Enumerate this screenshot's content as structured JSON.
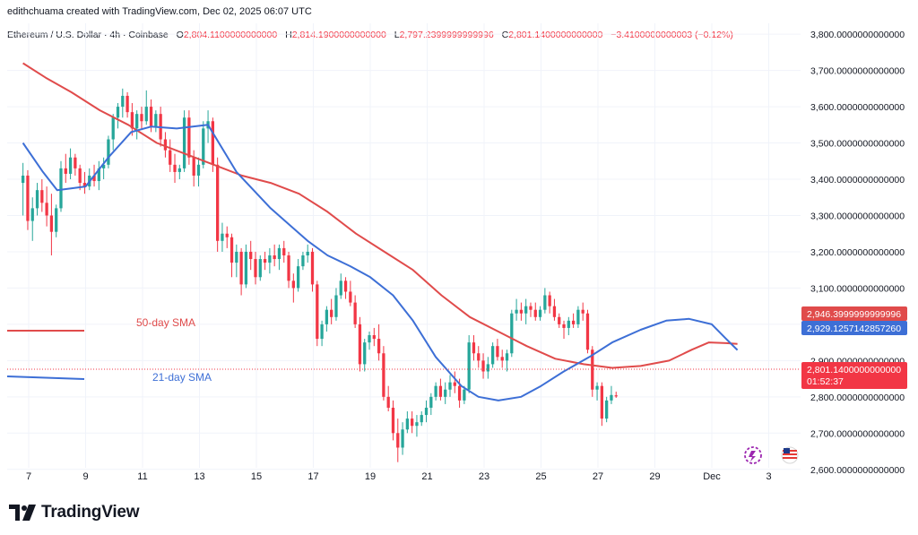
{
  "header": {
    "author_line": "edithchuama created with TradingView.com, Dec 02, 2025 06:07 UTC"
  },
  "legend": {
    "symbol": "Ethereum / U.S. Dollar · 4h · Coinbase",
    "open_label": "O",
    "open": "2,804.1100000000000",
    "high_label": "H",
    "high": "2,814.1900000000000",
    "low_label": "L",
    "low": "2,797.2399999999996",
    "close_label": "C",
    "close": "2,801.1400000000000",
    "change": "−3.4100000000003 (−0.12%)"
  },
  "price_badges": {
    "sma50_value": "2,946.3999999999996",
    "sma21_value": "2,929.1257142857260",
    "last_price": "2,801.1400000000000",
    "countdown": "01:52:37"
  },
  "annotations": {
    "sma50_label": "50-day SMA",
    "sma21_label": "21-day SMA"
  },
  "colors": {
    "up": "#26a69a",
    "down": "#f23645",
    "sma50": "#e04b4b",
    "sma21": "#3d6fd6",
    "grid": "#f0f3fa",
    "axis_text": "#131722"
  },
  "footer": {
    "brand": "TradingView"
  },
  "chart_data": {
    "type": "candlestick",
    "title": "Ethereum / U.S. Dollar · 4h · Coinbase",
    "ylim": [
      2550,
      3830
    ],
    "y_ticks": [
      2600,
      2700,
      2800,
      2900,
      3000,
      3100,
      3200,
      3300,
      3400,
      3500,
      3600,
      3700,
      3800
    ],
    "y_tick_labels": [
      "2,600.0000000000000",
      "2,700.0000000000000",
      "2,800.0000000000000",
      "2,900.0000000000000",
      "3,000.0000000000000",
      "3,100.0000000000000",
      "3,200.0000000000000",
      "3,300.0000000000000",
      "3,400.0000000000000",
      "3,500.0000000000000",
      "3,600.0000000000000",
      "3,700.0000000000000",
      "3,800.0000000000000"
    ],
    "x_tick_labels": [
      "7",
      "9",
      "11",
      "13",
      "15",
      "17",
      "19",
      "21",
      "23",
      "25",
      "27",
      "29",
      "Dec",
      "3"
    ],
    "x_tick_days": [
      7,
      9,
      11,
      13,
      15,
      17,
      19,
      21,
      23,
      25,
      27,
      29,
      31,
      33
    ],
    "candle_start_day": 6.8,
    "candle_interval_days": 0.1667,
    "series": [
      {
        "name": "ETHUSD 4h",
        "ohlc": [
          [
            3390,
            3445,
            3300,
            3410
          ],
          [
            3410,
            3425,
            3260,
            3285
          ],
          [
            3285,
            3350,
            3230,
            3320
          ],
          [
            3320,
            3390,
            3300,
            3370
          ],
          [
            3370,
            3400,
            3310,
            3335
          ],
          [
            3335,
            3380,
            3270,
            3300
          ],
          [
            3300,
            3360,
            3190,
            3255
          ],
          [
            3255,
            3330,
            3240,
            3320
          ],
          [
            3320,
            3450,
            3310,
            3430
          ],
          [
            3430,
            3470,
            3390,
            3415
          ],
          [
            3415,
            3485,
            3400,
            3460
          ],
          [
            3460,
            3470,
            3410,
            3430
          ],
          [
            3430,
            3440,
            3370,
            3390
          ],
          [
            3390,
            3420,
            3360,
            3380
          ],
          [
            3380,
            3430,
            3370,
            3410
          ],
          [
            3410,
            3440,
            3380,
            3395
          ],
          [
            3395,
            3450,
            3370,
            3430
          ],
          [
            3430,
            3460,
            3400,
            3440
          ],
          [
            3440,
            3520,
            3430,
            3510
          ],
          [
            3510,
            3580,
            3480,
            3570
          ],
          [
            3570,
            3610,
            3540,
            3600
          ],
          [
            3600,
            3650,
            3570,
            3630
          ],
          [
            3630,
            3640,
            3570,
            3585
          ],
          [
            3585,
            3610,
            3520,
            3540
          ],
          [
            3540,
            3590,
            3510,
            3580
          ],
          [
            3580,
            3600,
            3540,
            3560
          ],
          [
            3560,
            3645,
            3550,
            3600
          ],
          [
            3600,
            3620,
            3530,
            3545
          ],
          [
            3545,
            3590,
            3530,
            3580
          ],
          [
            3580,
            3600,
            3490,
            3510
          ],
          [
            3510,
            3530,
            3460,
            3480
          ],
          [
            3480,
            3510,
            3420,
            3440
          ],
          [
            3440,
            3470,
            3390,
            3420
          ],
          [
            3420,
            3440,
            3400,
            3430
          ],
          [
            3430,
            3590,
            3420,
            3570
          ],
          [
            3570,
            3590,
            3440,
            3460
          ],
          [
            3460,
            3480,
            3380,
            3410
          ],
          [
            3410,
            3460,
            3380,
            3440
          ],
          [
            3440,
            3560,
            3430,
            3540
          ],
          [
            3540,
            3590,
            3500,
            3560
          ],
          [
            3560,
            3570,
            3420,
            3440
          ],
          [
            3440,
            3460,
            3200,
            3230
          ],
          [
            3230,
            3280,
            3200,
            3250
          ],
          [
            3250,
            3270,
            3210,
            3240
          ],
          [
            3240,
            3250,
            3130,
            3170
          ],
          [
            3170,
            3220,
            3130,
            3200
          ],
          [
            3200,
            3210,
            3080,
            3110
          ],
          [
            3110,
            3220,
            3100,
            3200
          ],
          [
            3200,
            3230,
            3150,
            3180
          ],
          [
            3180,
            3200,
            3110,
            3130
          ],
          [
            3130,
            3190,
            3120,
            3180
          ],
          [
            3180,
            3200,
            3150,
            3170
          ],
          [
            3170,
            3210,
            3140,
            3190
          ],
          [
            3190,
            3220,
            3160,
            3180
          ],
          [
            3180,
            3220,
            3150,
            3210
          ],
          [
            3210,
            3230,
            3170,
            3190
          ],
          [
            3190,
            3200,
            3100,
            3120
          ],
          [
            3120,
            3140,
            3060,
            3100
          ],
          [
            3100,
            3180,
            3090,
            3160
          ],
          [
            3160,
            3200,
            3150,
            3190
          ],
          [
            3190,
            3220,
            3170,
            3200
          ],
          [
            3200,
            3210,
            3090,
            3110
          ],
          [
            3110,
            3120,
            2940,
            2960
          ],
          [
            2960,
            3010,
            2940,
            3000
          ],
          [
            3000,
            3050,
            2980,
            3040
          ],
          [
            3040,
            3070,
            3000,
            3020
          ],
          [
            3020,
            3100,
            3010,
            3080
          ],
          [
            3080,
            3140,
            3070,
            3120
          ],
          [
            3120,
            3130,
            3070,
            3090
          ],
          [
            3090,
            3120,
            3050,
            3060
          ],
          [
            3060,
            3080,
            2990,
            3000
          ],
          [
            3000,
            3020,
            2870,
            2890
          ],
          [
            2890,
            2960,
            2870,
            2950
          ],
          [
            2950,
            2980,
            2930,
            2970
          ],
          [
            2970,
            2990,
            2940,
            2960
          ],
          [
            2960,
            3000,
            2900,
            2920
          ],
          [
            2920,
            2940,
            2790,
            2800
          ],
          [
            2800,
            2830,
            2760,
            2770
          ],
          [
            2770,
            2790,
            2680,
            2700
          ],
          [
            2700,
            2740,
            2620,
            2660
          ],
          [
            2660,
            2730,
            2640,
            2710
          ],
          [
            2710,
            2760,
            2700,
            2740
          ],
          [
            2740,
            2760,
            2700,
            2720
          ],
          [
            2720,
            2750,
            2690,
            2730
          ],
          [
            2730,
            2760,
            2720,
            2750
          ],
          [
            2750,
            2790,
            2730,
            2770
          ],
          [
            2770,
            2810,
            2750,
            2800
          ],
          [
            2800,
            2840,
            2790,
            2830
          ],
          [
            2830,
            2850,
            2790,
            2800
          ],
          [
            2800,
            2840,
            2780,
            2820
          ],
          [
            2820,
            2860,
            2800,
            2840
          ],
          [
            2840,
            2870,
            2810,
            2830
          ],
          [
            2830,
            2850,
            2770,
            2790
          ],
          [
            2790,
            2830,
            2780,
            2820
          ],
          [
            2820,
            2970,
            2810,
            2950
          ],
          [
            2950,
            2970,
            2900,
            2920
          ],
          [
            2920,
            2940,
            2880,
            2900
          ],
          [
            2900,
            2920,
            2850,
            2870
          ],
          [
            2870,
            2910,
            2850,
            2890
          ],
          [
            2890,
            2950,
            2880,
            2940
          ],
          [
            2940,
            2960,
            2900,
            2910
          ],
          [
            2910,
            2930,
            2880,
            2900
          ],
          [
            2900,
            2930,
            2870,
            2920
          ],
          [
            2920,
            3040,
            2910,
            3030
          ],
          [
            3030,
            3070,
            3010,
            3040
          ],
          [
            3040,
            3060,
            3010,
            3030
          ],
          [
            3030,
            3070,
            3000,
            3050
          ],
          [
            3050,
            3060,
            3020,
            3040
          ],
          [
            3040,
            3060,
            3010,
            3020
          ],
          [
            3020,
            3050,
            3010,
            3040
          ],
          [
            3040,
            3100,
            3030,
            3080
          ],
          [
            3080,
            3090,
            3030,
            3050
          ],
          [
            3050,
            3070,
            3010,
            3020
          ],
          [
            3020,
            3030,
            2990,
            3000
          ],
          [
            3000,
            3010,
            2960,
            2990
          ],
          [
            2990,
            3020,
            2970,
            3010
          ],
          [
            3010,
            3030,
            2990,
            3000
          ],
          [
            3000,
            3050,
            2990,
            3040
          ],
          [
            3040,
            3060,
            3010,
            3030
          ],
          [
            3030,
            3040,
            2920,
            2930
          ],
          [
            2930,
            2940,
            2800,
            2820
          ],
          [
            2820,
            2840,
            2790,
            2830
          ],
          [
            2830,
            2840,
            2720,
            2740
          ],
          [
            2740,
            2800,
            2730,
            2790
          ],
          [
            2790,
            2830,
            2780,
            2805
          ],
          [
            2804.11,
            2814.19,
            2797.24,
            2801.14
          ]
        ]
      },
      {
        "name": "21-day SMA",
        "points": [
          [
            6.8,
            3500
          ],
          [
            7.5,
            3420
          ],
          [
            8.0,
            3370
          ],
          [
            9.0,
            3380
          ],
          [
            9.8,
            3460
          ],
          [
            10.6,
            3530
          ],
          [
            11.3,
            3545
          ],
          [
            12.2,
            3540
          ],
          [
            13.3,
            3550
          ],
          [
            14.3,
            3420
          ],
          [
            15.5,
            3320
          ],
          [
            16.8,
            3230
          ],
          [
            17.5,
            3190
          ],
          [
            18.3,
            3160
          ],
          [
            19.0,
            3130
          ],
          [
            19.8,
            3080
          ],
          [
            20.5,
            3010
          ],
          [
            21.3,
            2910
          ],
          [
            22.2,
            2830
          ],
          [
            22.8,
            2800
          ],
          [
            23.5,
            2790
          ],
          [
            24.3,
            2800
          ],
          [
            25.0,
            2830
          ],
          [
            25.8,
            2870
          ],
          [
            26.7,
            2910
          ],
          [
            27.5,
            2950
          ],
          [
            28.5,
            2985
          ],
          [
            29.4,
            3010
          ],
          [
            30.2,
            3015
          ],
          [
            31.0,
            3000
          ],
          [
            31.5,
            2960
          ],
          [
            31.9,
            2929
          ]
        ]
      },
      {
        "name": "50-day SMA",
        "points": [
          [
            6.8,
            3720
          ],
          [
            7.6,
            3680
          ],
          [
            8.5,
            3640
          ],
          [
            9.5,
            3590
          ],
          [
            10.5,
            3550
          ],
          [
            11.5,
            3500
          ],
          [
            12.5,
            3470
          ],
          [
            13.5,
            3440
          ],
          [
            14.5,
            3410
          ],
          [
            15.5,
            3390
          ],
          [
            16.5,
            3360
          ],
          [
            17.5,
            3310
          ],
          [
            18.5,
            3250
          ],
          [
            19.5,
            3200
          ],
          [
            20.5,
            3150
          ],
          [
            21.5,
            3080
          ],
          [
            22.5,
            3020
          ],
          [
            23.5,
            2980
          ],
          [
            24.5,
            2940
          ],
          [
            25.5,
            2905
          ],
          [
            26.5,
            2890
          ],
          [
            27.5,
            2880
          ],
          [
            28.5,
            2885
          ],
          [
            29.5,
            2900
          ],
          [
            30.3,
            2930
          ],
          [
            30.9,
            2950
          ],
          [
            31.5,
            2948
          ],
          [
            31.9,
            2946
          ]
        ]
      }
    ]
  }
}
